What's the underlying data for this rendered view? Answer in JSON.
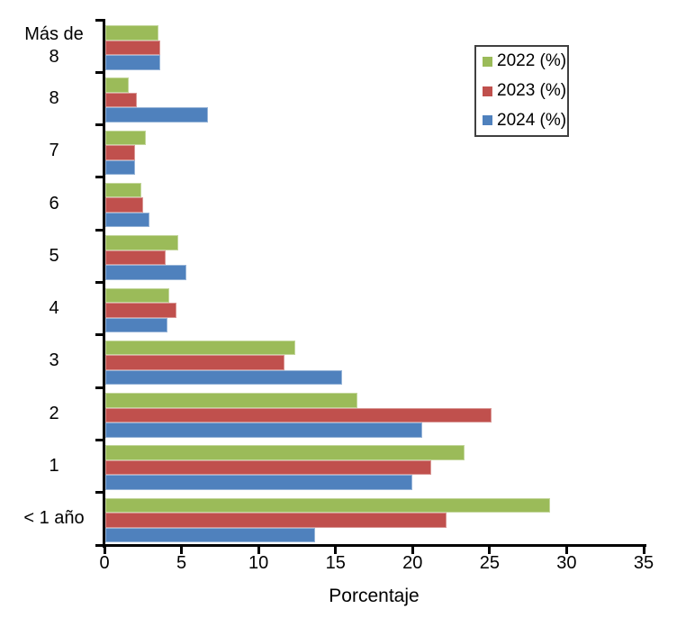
{
  "chart_data": {
    "type": "bar",
    "orientation": "horizontal",
    "title": "",
    "xlabel": "Porcentaje",
    "ylabel": "",
    "xlim": [
      0,
      35
    ],
    "xticks": [
      0,
      5,
      10,
      15,
      20,
      25,
      30,
      35
    ],
    "grid": false,
    "legend_position": "top-right",
    "categories": [
      "Más de\n8",
      "8",
      "7",
      "6",
      "5",
      "4",
      "3",
      "2",
      "1",
      "< 1 año"
    ],
    "series": [
      {
        "name": "2022 (%)",
        "color": "#9BBB59",
        "border_color": "#C3D69B",
        "values": [
          3.5,
          1.6,
          2.7,
          2.4,
          4.8,
          4.2,
          12.4,
          16.4,
          23.4,
          28.9
        ]
      },
      {
        "name": "2023 (%)",
        "color": "#C0504D",
        "border_color": "#D99694",
        "values": [
          3.6,
          2.1,
          2.0,
          2.5,
          4.0,
          4.7,
          11.7,
          25.1,
          21.2,
          22.2
        ]
      },
      {
        "name": "2024 (%)",
        "color": "#4F81BD",
        "border_color": "#95B3D7",
        "values": [
          3.6,
          6.7,
          2.0,
          2.9,
          5.3,
          4.1,
          15.4,
          20.6,
          20.0,
          13.7
        ]
      }
    ],
    "axis_color": "#000000",
    "text_color": "#000000"
  }
}
